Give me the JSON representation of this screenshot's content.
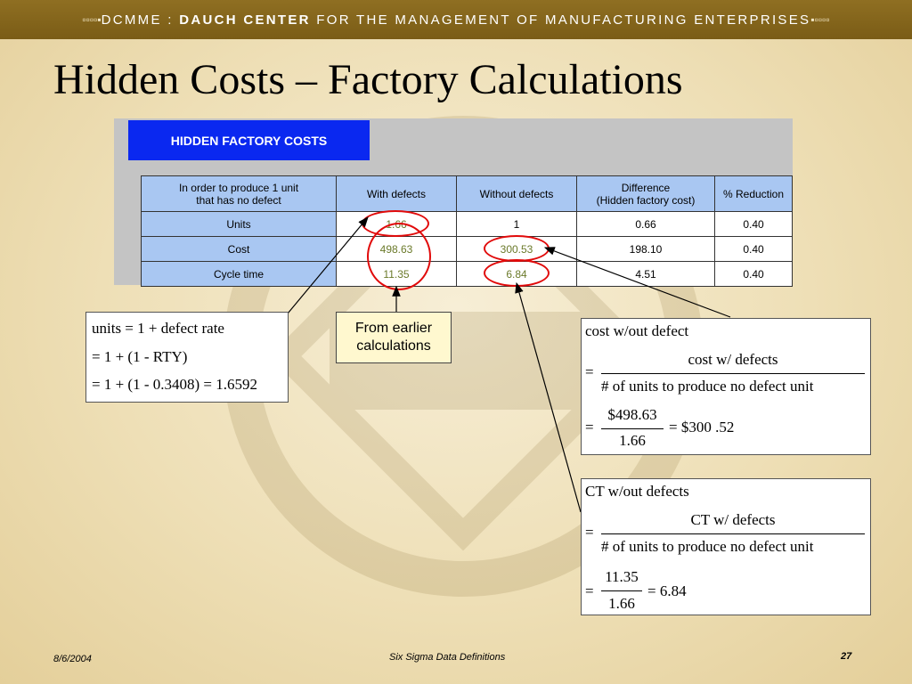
{
  "banner": {
    "text_prefix": "DCMME : ",
    "text_bold": "DAUCH CENTER",
    "text_suffix": " FOR THE MANAGEMENT OF MANUFACTURING ENTERPRISES",
    "glyphs_left": "▫▫▫▫▪",
    "glyphs_right": "▪▫▫▫▫"
  },
  "title": "Hidden Costs – Factory Calculations",
  "panel": {
    "title": "HIDDEN FACTORY COSTS"
  },
  "table": {
    "headers": [
      "In order to produce 1 unit that has no defect",
      "With defects",
      "Without defects",
      "Difference (Hidden factory cost)",
      "% Reduction"
    ],
    "header0_line1": "In order to produce 1 unit",
    "header0_line2": "that has no defect",
    "header3_line1": "Difference",
    "header3_line2": "(Hidden factory cost)",
    "rows": [
      {
        "label": "Units",
        "with": "1.66",
        "without": "1",
        "difference": "0.66",
        "reduction": "0.40"
      },
      {
        "label": "Cost",
        "with": "498.63",
        "without": "300.53",
        "difference": "198.10",
        "reduction": "0.40"
      },
      {
        "label": "Cycle time",
        "with": "11.35",
        "without": "6.84",
        "difference": "4.51",
        "reduction": "0.40"
      }
    ]
  },
  "formula_units": {
    "line1": "units = 1 + defect rate",
    "line2": "= 1 + (1 - RTY)",
    "line3": "= 1 + (1 - 0.3408)   = 1.6592"
  },
  "callout": {
    "line1": "From earlier",
    "line2": "calculations"
  },
  "formula_cost": {
    "line1": "cost w/out defect",
    "eq": "=",
    "numerator": "cost w/ defects",
    "denominator": "# of units to produce no defect unit",
    "num2": "$498.63",
    "den2": "1.66",
    "result": "= $300 .52"
  },
  "formula_ct": {
    "line1": "CT w/out defects",
    "eq": "=",
    "numerator": "CT w/ defects",
    "denominator": "# of units to produce no defect unit",
    "num2": "11.35",
    "den2": "1.66",
    "result": "= 6.84"
  },
  "footer": {
    "date": "8/6/2004",
    "center": "Six Sigma Data Definitions",
    "page": "27"
  },
  "colors": {
    "banner": "#7a5c16",
    "panel_title": "#0a28f0",
    "header_blue": "#a9c7f2",
    "highlight": "#e10a0a"
  }
}
